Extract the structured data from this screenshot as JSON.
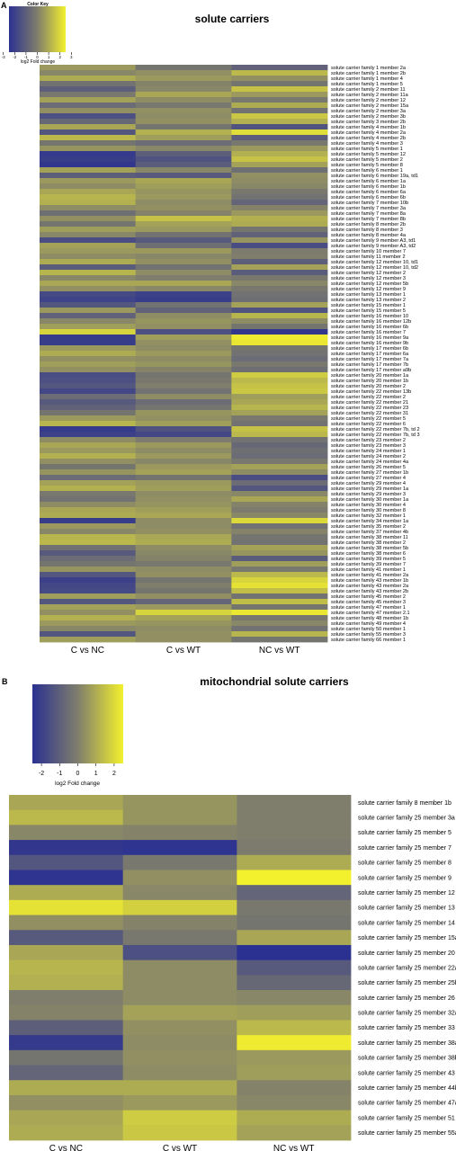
{
  "panel_labels": [
    "A",
    "B"
  ],
  "color_key": {
    "title": "Color Key",
    "xlabel": "log2 Fold change",
    "low_color": "#2B3190",
    "mid_color": "#7F7E6C",
    "high_color": "#F3F02E",
    "scale": [
      -2.5,
      2.5
    ],
    "ticks_a": [
      "-3",
      "-2",
      "-1",
      "0",
      "1",
      "2",
      "3"
    ],
    "ticks_b": [
      "-2",
      "-1",
      "0",
      "1",
      "2"
    ]
  },
  "chart_data": [
    {
      "type": "heatmap",
      "panel": "A",
      "title": "solute carriers",
      "columns": [
        "C vs NC",
        "C vs WT",
        "NC vs WT"
      ],
      "rows": [
        "solute carrier family 1 member 2a",
        "solute carrier family 1 member 2b",
        "solute carrier family 1 member 4",
        "solute carrier family 1 member 5",
        "solute carrier family 2 member 11",
        "solute carrier family 2 member 11a",
        "solute carrier family 2 member 12",
        "solute carrier family 2 member 15a",
        "solute carrier family 2 member 3a",
        "solute carrier family 2 member 3b",
        "solute carrier family 3 member 2b",
        "solute carrier family 4 member 1b",
        "solute carrier family 4 member 2a",
        "solute carrier family 4 member 2b",
        "solute carrier family 4 member 3",
        "solute carrier family 5 member 1",
        "solute carrier family 5 member 12",
        "solute carrier family 5 member 2",
        "solute carrier family 5 member 8",
        "solute carrier family 6 member 1",
        "solute carrier family 6 member 19a, td1",
        "solute carrier family 6 member 1a",
        "solute carrier family 6 member 1b",
        "solute carrier family 6 member 6a",
        "solute carrier family 6 member 6b",
        "solute carrier family 7 member 10b",
        "solute carrier family 7 member 3a",
        "solute carrier family 7 member 8a",
        "solute carrier family 7 member 8b",
        "solute carrier family 8 member 2b",
        "solute carrier family 8 member 3",
        "solute carrier family 8 member 4a",
        "solute carrier family 9 member A3, td1",
        "solute carrier family 9 member A3, td2",
        "solute carrier family 10 member 7",
        "solute carrier family 11 member 2",
        "solute carrier family 12 member 10, td1",
        "solute carrier family 12 member 10, td2",
        "solute carrier family 12 member 2",
        "solute carrier family 12 member 3",
        "solute carrier family 12 member 5b",
        "solute carrier family 12 member 9",
        "solute carrier family 13 member 1",
        "solute carrier family 13 member 2",
        "solute carrier family 15 member 1",
        "solute carrier family 15 member 5",
        "solute carrier family 16 member 10",
        "solute carrier family 16 member 12b",
        "solute carrier family 16 member 6b",
        "solute carrier family 16 member 7",
        "solute carrier family 16 member 9a",
        "solute carrier family 16 member 9b",
        "solute carrier family 17 member 6b",
        "solute carrier family 17 member 6a",
        "solute carrier family 17 member 7a",
        "solute carrier family 17 member 7b",
        "solute carrier family 17 member a9b",
        "solute carrier family 20 member 1a",
        "solute carrier family 20 member 1b",
        "solute carrier family 20 member 2",
        "solute carrier family 22 member 13b",
        "solute carrier family 22 member 2",
        "solute carrier family 22 member 21",
        "solute carrier family 22 member 23",
        "solute carrier family 22 member 31",
        "solute carrier family 22 member 5",
        "solute carrier family 22 member 6",
        "solute carrier family 22 member 7b, td 2",
        "solute carrier family 22 member 7b, td 3",
        "solute carrier family 23 member 2",
        "solute carrier family 23 member 3",
        "solute carrier family 24 member 1",
        "solute carrier family 24 member 2",
        "solute carrier family 24 member 4a",
        "solute carrier family 26 member 5",
        "solute carrier family 27 member 1b",
        "solute carrier family 27 member 4",
        "solute carrier family 29 member 4",
        "solute carrier family 29 member 1a",
        "solute carrier family 29 member 3",
        "solute carrier family 30 member 1a",
        "solute carrier family 30 member 4",
        "solute carrier family 30 member 8",
        "solute carrier family 32 member 1",
        "solute carrier family 34 member 1a",
        "solute carrier family 35 member 2",
        "solute carrier family 37 member 4b",
        "solute carrier family 38 member 11",
        "solute carrier family 38 member 2",
        "solute carrier family 38 member 5b",
        "solute carrier family 38 member 6",
        "solute carrier family 39 member 5",
        "solute carrier family 39 member 7",
        "solute carrier family 41 member 1",
        "solute carrier family 41 member 2a",
        "solute carrier family 43 member 1b",
        "solute carrier family 43 member 2a",
        "solute carrier family 43 member 2b",
        "solute carrier family 45 member 2",
        "solute carrier family 45 member 3",
        "solute carrier family 47 member 1",
        "solute carrier family 47 member 2.1",
        "solute carrier family 48 member 1b",
        "solute carrier family 49 member 4",
        "solute carrier family 50 member 1",
        "solute carrier family 55 member 3",
        "solute carrier family 66 member 1"
      ],
      "values": [
        [
          0.6,
          -0.3,
          -0.9
        ],
        [
          0.2,
          0.4,
          1.3
        ],
        [
          1.0,
          0.6,
          0.4
        ],
        [
          -0.4,
          0.1,
          -0.3
        ],
        [
          -1.0,
          0.2,
          1.5
        ],
        [
          -0.2,
          0.9,
          0.6
        ],
        [
          0.8,
          0.3,
          -0.2
        ],
        [
          -0.6,
          -0.2,
          1.0
        ],
        [
          0.4,
          0.4,
          -0.4
        ],
        [
          -1.5,
          0.3,
          1.6
        ],
        [
          -0.7,
          0.4,
          1.1
        ],
        [
          0.9,
          -0.3,
          -1.4
        ],
        [
          -1.3,
          1.1,
          2.1
        ],
        [
          1.3,
          0.7,
          -1.0
        ],
        [
          -0.3,
          -0.6,
          -0.2
        ],
        [
          0.5,
          0.2,
          0.6
        ],
        [
          -2.2,
          -1.0,
          1.1
        ],
        [
          -2.1,
          -1.4,
          1.5
        ],
        [
          -2.3,
          -1.1,
          0.8
        ],
        [
          0.8,
          0.2,
          -0.5
        ],
        [
          -1.0,
          -1.2,
          0.4
        ],
        [
          0.6,
          0.9,
          0.3
        ],
        [
          0.3,
          0.7,
          0.2
        ],
        [
          0.9,
          0.5,
          -0.2
        ],
        [
          1.2,
          0.6,
          -0.4
        ],
        [
          1.1,
          0.3,
          -0.8
        ],
        [
          0.3,
          0.4,
          0.1
        ],
        [
          -0.5,
          0.1,
          0.6
        ],
        [
          0.4,
          1.5,
          1.1
        ],
        [
          -0.3,
          0.8,
          1.0
        ],
        [
          0.7,
          0.6,
          -0.3
        ],
        [
          0.2,
          -0.4,
          -0.9
        ],
        [
          -1.6,
          -1.2,
          0.5
        ],
        [
          0.8,
          -0.5,
          -1.6
        ],
        [
          0.6,
          0.6,
          -0.1
        ],
        [
          0.3,
          0.2,
          0.0
        ],
        [
          1.0,
          0.4,
          -1.0
        ],
        [
          -1.1,
          -0.4,
          0.8
        ],
        [
          1.2,
          0.3,
          -1.1
        ],
        [
          0.2,
          0.0,
          -0.2
        ],
        [
          0.9,
          0.9,
          0.2
        ],
        [
          0.4,
          0.2,
          -0.2
        ],
        [
          -1.7,
          -2.0,
          -0.4
        ],
        [
          -1.9,
          -2.1,
          -0.5
        ],
        [
          -1.3,
          -0.4,
          0.8
        ],
        [
          0.6,
          -0.9,
          -1.4
        ],
        [
          -0.9,
          0.3,
          1.2
        ],
        [
          0.2,
          0.5,
          0.3
        ],
        [
          0.7,
          0.4,
          -0.3
        ],
        [
          1.9,
          -1.5,
          -2.3
        ],
        [
          -2.1,
          0.7,
          2.4
        ],
        [
          -2.1,
          0.4,
          2.3
        ],
        [
          0.6,
          0.3,
          -0.3
        ],
        [
          1.0,
          0.6,
          -0.4
        ],
        [
          0.4,
          0.3,
          -0.6
        ],
        [
          0.7,
          0.5,
          -0.2
        ],
        [
          0.4,
          0.1,
          -0.5
        ],
        [
          -1.6,
          -0.3,
          1.7
        ],
        [
          -1.5,
          -0.2,
          1.3
        ],
        [
          -1.3,
          0.0,
          1.5
        ],
        [
          -1.8,
          -0.4,
          1.6
        ],
        [
          -0.6,
          0.3,
          0.7
        ],
        [
          -1.2,
          -0.6,
          0.9
        ],
        [
          -0.9,
          -0.3,
          1.2
        ],
        [
          -0.3,
          0.5,
          0.8
        ],
        [
          0.6,
          0.4,
          -0.2
        ],
        [
          1.2,
          0.7,
          -0.4
        ],
        [
          -2.2,
          -1.4,
          1.5
        ],
        [
          -2.0,
          -1.8,
          1.3
        ],
        [
          0.3,
          -0.1,
          -0.4
        ],
        [
          0.9,
          0.6,
          -0.7
        ],
        [
          0.6,
          0.3,
          -0.5
        ],
        [
          1.1,
          0.6,
          -0.6
        ],
        [
          0.4,
          0.2,
          -0.2
        ],
        [
          -0.3,
          0.6,
          0.8
        ],
        [
          0.5,
          0.8,
          0.3
        ],
        [
          -0.6,
          -0.3,
          -1.6
        ],
        [
          0.8,
          0.6,
          -0.6
        ],
        [
          1.1,
          0.7,
          -1.3
        ],
        [
          -0.2,
          0.3,
          0.2
        ],
        [
          -0.4,
          0.4,
          0.9
        ],
        [
          0.3,
          0.5,
          0.1
        ],
        [
          0.9,
          0.7,
          -0.1
        ],
        [
          1.0,
          0.9,
          0.2
        ],
        [
          -2.1,
          0.3,
          2.0
        ],
        [
          0.6,
          0.3,
          -0.4
        ],
        [
          0.2,
          0.4,
          0.1
        ],
        [
          1.2,
          0.9,
          -0.3
        ],
        [
          1.3,
          1.0,
          -0.4
        ],
        [
          -0.4,
          0.3,
          0.8
        ],
        [
          -1.2,
          0.2,
          0.5
        ],
        [
          -0.6,
          0.1,
          -1.1
        ],
        [
          -0.3,
          -0.2,
          0.7
        ],
        [
          0.5,
          0.3,
          -0.2
        ],
        [
          -1.3,
          0.4,
          1.3
        ],
        [
          -2.0,
          -0.3,
          1.9
        ],
        [
          -1.8,
          0.0,
          2.2
        ],
        [
          -1.7,
          -0.3,
          1.4
        ],
        [
          0.7,
          0.4,
          -0.4
        ],
        [
          -1.3,
          -0.8,
          1.4
        ],
        [
          0.8,
          0.6,
          -0.3
        ],
        [
          0.4,
          1.9,
          2.3
        ],
        [
          1.1,
          0.8,
          -0.2
        ],
        [
          0.6,
          0.5,
          0.2
        ],
        [
          0.2,
          0.3,
          -0.4
        ],
        [
          -1.3,
          0.4,
          1.2
        ],
        [
          0.7,
          0.4,
          -0.3
        ]
      ]
    },
    {
      "type": "heatmap",
      "panel": "B",
      "title": "mitochondrial solute carriers",
      "columns": [
        "C vs NC",
        "C vs WT",
        "NC vs WT"
      ],
      "rows": [
        "solute carrier family 8 member 1b",
        "solute carrier family 25 member 3a",
        "solute carrier family 25 member 5",
        "solute carrier family 25 member 7",
        "solute carrier family 25 member 8",
        "solute carrier family 25 member 9",
        "solute carrier family 25 member 12",
        "solute carrier family 25 member 13",
        "solute carrier family 25 member 14",
        "solute carrier family 25 member 15a",
        "solute carrier family 25 member 20",
        "solute carrier family 25 member 22a",
        "solute carrier family 25 member 25b",
        "solute carrier family 25 member 26",
        "solute carrier family 25 member 32a",
        "solute carrier family 25 member 33",
        "solute carrier family 25 member 38a",
        "solute carrier family 25 member 38b",
        "solute carrier family 25 member 43",
        "solute carrier family 25 member 44b",
        "solute carrier family 25 member 47a",
        "solute carrier family 25 member 51",
        "solute carrier family 25 member 55a"
      ],
      "values": [
        [
          0.9,
          0.5,
          0.0
        ],
        [
          1.3,
          0.5,
          0.0
        ],
        [
          0.2,
          0.1,
          0.0
        ],
        [
          -2.3,
          -2.4,
          -0.1
        ],
        [
          -1.3,
          -0.2,
          1.0
        ],
        [
          -2.4,
          0.4,
          2.7
        ],
        [
          1.0,
          0.2,
          -0.8
        ],
        [
          2.2,
          1.8,
          -0.2
        ],
        [
          0.4,
          0.1,
          -0.3
        ],
        [
          -1.2,
          -0.2,
          0.9
        ],
        [
          0.9,
          -1.5,
          -2.6
        ],
        [
          1.2,
          0.3,
          -1.2
        ],
        [
          1.1,
          0.3,
          -0.7
        ],
        [
          0.0,
          0.3,
          0.2
        ],
        [
          0.1,
          0.8,
          0.7
        ],
        [
          -1.0,
          0.4,
          1.3
        ],
        [
          -2.2,
          0.3,
          2.4
        ],
        [
          -0.3,
          0.4,
          0.6
        ],
        [
          -0.8,
          0.3,
          0.7
        ],
        [
          1.0,
          1.0,
          0.1
        ],
        [
          0.4,
          0.6,
          0.2
        ],
        [
          0.9,
          1.7,
          1.0
        ],
        [
          1.0,
          1.6,
          0.8
        ]
      ]
    }
  ]
}
